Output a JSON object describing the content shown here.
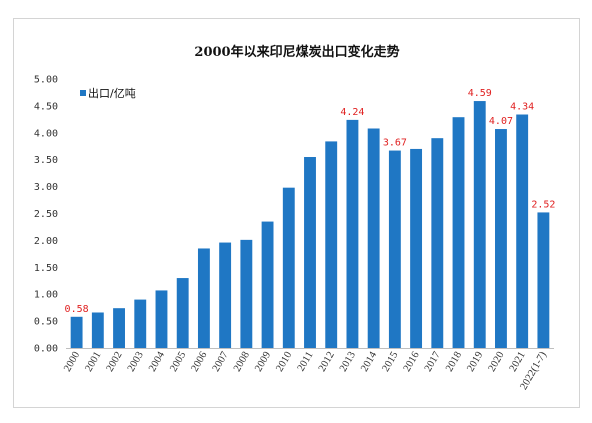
{
  "chart_data": {
    "type": "bar",
    "title": "2000年以来印尼煤炭出口变化走势",
    "xlabel": "",
    "ylabel": "",
    "ylim": [
      0,
      5
    ],
    "yticks": [
      "0.00",
      "0.50",
      "1.00",
      "1.50",
      "2.00",
      "2.50",
      "3.00",
      "3.50",
      "4.00",
      "4.50",
      "5.00"
    ],
    "grid": false,
    "legend_position": "top-left",
    "color": "#1f77c4",
    "categories": [
      "2000",
      "2001",
      "2002",
      "2003",
      "2004",
      "2005",
      "2006",
      "2007",
      "2008",
      "2009",
      "2010",
      "2011",
      "2012",
      "2013",
      "2014",
      "2015",
      "2016",
      "2017",
      "2018",
      "2019",
      "2020",
      "2021",
      "2022(1-7)"
    ],
    "series": [
      {
        "name": "出口/亿吨",
        "values": [
          0.58,
          0.66,
          0.74,
          0.9,
          1.07,
          1.3,
          1.85,
          1.96,
          2.01,
          2.35,
          2.98,
          3.55,
          3.84,
          4.24,
          4.08,
          3.67,
          3.7,
          3.9,
          4.29,
          4.59,
          4.07,
          4.34,
          2.52
        ]
      }
    ],
    "data_labels": [
      {
        "index": 0,
        "text": "0.58"
      },
      {
        "index": 13,
        "text": "4.24"
      },
      {
        "index": 15,
        "text": "3.67"
      },
      {
        "index": 19,
        "text": "4.59"
      },
      {
        "index": 20,
        "text": "4.07"
      },
      {
        "index": 21,
        "text": "4.34"
      },
      {
        "index": 22,
        "text": "2.52"
      }
    ]
  }
}
